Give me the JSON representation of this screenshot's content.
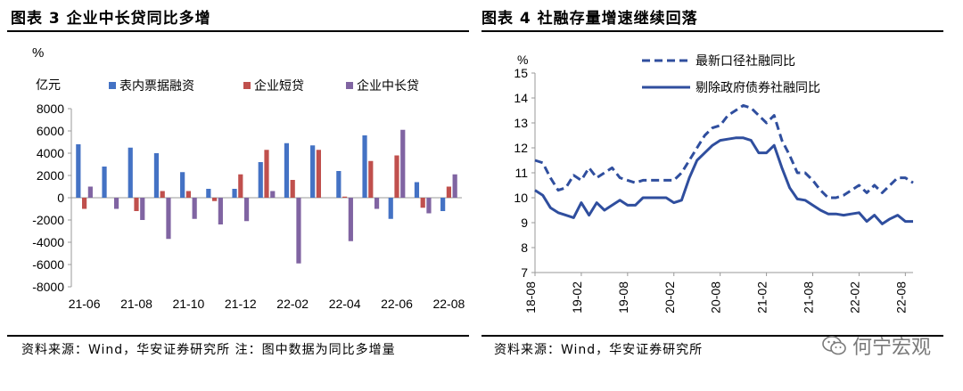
{
  "left": {
    "figure_title": "图表 3 企业中长贷同比多增",
    "source": "资料来源：Wind，华安证券研究所  注：图中数据为同比多增量",
    "chart_data": {
      "type": "bar",
      "title": "图表 3 企业中长贷同比多增",
      "unit_label_1": "%",
      "unit_label_2": "亿元",
      "xlabel": "",
      "ylabel": "亿元",
      "ylim": [
        -8000,
        8000
      ],
      "y_ticks": [
        -8000,
        -6000,
        -4000,
        -2000,
        0,
        2000,
        4000,
        6000,
        8000
      ],
      "y_tick_labels": [
        "-8000",
        "-6000",
        "-4000",
        "-2000",
        "0",
        "2000",
        "4000",
        "6000",
        "8000"
      ],
      "categories": [
        "21-06",
        "21-07",
        "21-08",
        "21-09",
        "21-10",
        "21-11",
        "21-12",
        "22-01",
        "22-02",
        "22-03",
        "22-04",
        "22-05",
        "22-06",
        "22-07",
        "22-08"
      ],
      "x_tick_labels": [
        "21-06",
        "21-08",
        "21-10",
        "21-12",
        "22-02",
        "22-04",
        "22-06",
        "22-08"
      ],
      "series": [
        {
          "name": "表内票据融资",
          "color": "#4472C4",
          "values": [
            4800,
            2800,
            4500,
            4000,
            2300,
            800,
            800,
            3200,
            4900,
            4700,
            2400,
            5600,
            -1900,
            1400,
            -1200
          ]
        },
        {
          "name": "企业短贷",
          "color": "#C0504D",
          "values": [
            -1000,
            0,
            -1200,
            600,
            600,
            -300,
            2100,
            4300,
            1600,
            4300,
            100,
            3300,
            3800,
            -900,
            1000
          ]
        },
        {
          "name": "企业中长贷",
          "color": "#8064A2",
          "values": [
            1000,
            -1000,
            -2000,
            -3700,
            -1900,
            -2400,
            -2100,
            600,
            -5900,
            0,
            -3900,
            -1000,
            6100,
            -1400,
            2100
          ]
        }
      ],
      "legend_position": "top",
      "grid": false
    }
  },
  "right": {
    "figure_title": "图表 4 社融存量增速继续回落",
    "source": "资料来源：Wind，华安证券研究所",
    "chart_data": {
      "type": "line",
      "title": "图表 4 社融存量增速继续回落",
      "unit_label": "%",
      "xlabel": "",
      "ylabel": "%",
      "ylim": [
        7,
        15
      ],
      "y_ticks": [
        7,
        8,
        9,
        10,
        11,
        12,
        13,
        14,
        15
      ],
      "y_tick_labels": [
        "7",
        "8",
        "9",
        "10",
        "11",
        "12",
        "13",
        "14",
        "15"
      ],
      "x_start": "18-08",
      "x_end": "22-08",
      "x_tick_labels": [
        "18-08",
        "19-02",
        "19-08",
        "20-02",
        "20-08",
        "21-02",
        "21-08",
        "22-02",
        "22-08"
      ],
      "x_tick_month_index": [
        0,
        6,
        12,
        18,
        24,
        30,
        36,
        42,
        48
      ],
      "series": [
        {
          "name": "最新口径社融同比",
          "color": "#2F4E9E",
          "style": "dashed",
          "values": [
            11.5,
            11.4,
            10.8,
            10.3,
            10.4,
            10.9,
            10.7,
            11.2,
            10.8,
            11.0,
            11.2,
            10.8,
            10.7,
            10.6,
            10.7,
            10.7,
            10.7,
            10.7,
            10.7,
            11.0,
            11.5,
            12.0,
            12.5,
            12.8,
            12.9,
            13.3,
            13.5,
            13.7,
            13.6,
            13.3,
            13.0,
            13.3,
            12.3,
            11.7,
            11.0,
            11.0,
            10.7,
            10.3,
            10.0,
            10.0,
            10.1,
            10.3,
            10.5,
            10.2,
            10.5,
            10.2,
            10.5,
            10.8,
            10.8,
            10.6
          ]
        },
        {
          "name": "剔除政府债券社融同比",
          "color": "#2F4E9E",
          "style": "solid",
          "values": [
            10.3,
            10.1,
            9.6,
            9.4,
            9.3,
            9.2,
            9.8,
            9.3,
            9.8,
            9.5,
            9.7,
            9.9,
            9.7,
            9.7,
            10.0,
            10.0,
            10.0,
            10.0,
            9.8,
            9.9,
            10.8,
            11.5,
            11.8,
            12.1,
            12.3,
            12.35,
            12.4,
            12.4,
            12.3,
            11.8,
            11.8,
            12.1,
            11.2,
            10.4,
            9.95,
            9.9,
            9.7,
            9.5,
            9.35,
            9.35,
            9.3,
            9.35,
            9.4,
            9.05,
            9.3,
            8.95,
            9.15,
            9.3,
            9.05,
            9.05
          ]
        }
      ],
      "legend_position": "top-right",
      "grid": false
    }
  },
  "watermark": {
    "icon": "wechat-icon",
    "text": "何宁宏观"
  }
}
